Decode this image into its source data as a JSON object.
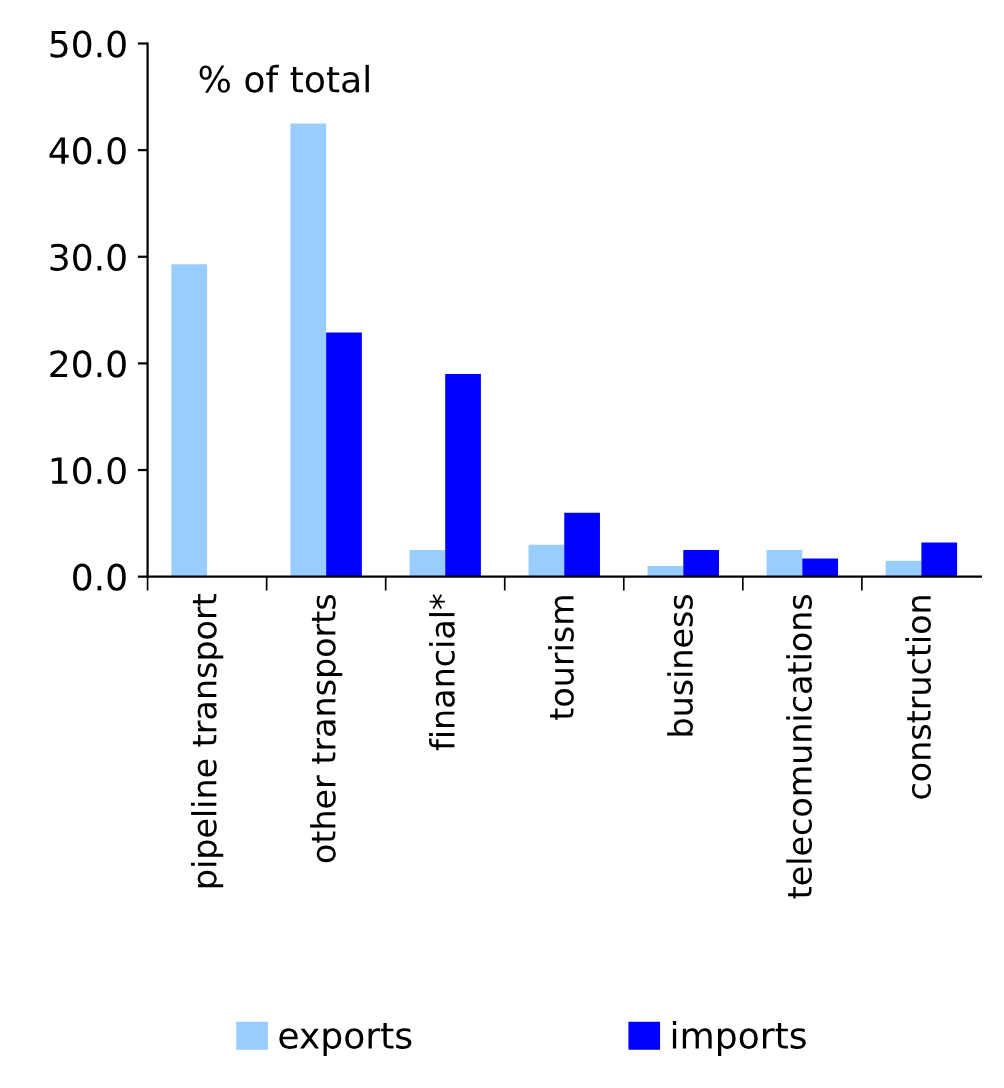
{
  "chart_data": {
    "type": "bar",
    "annotations": [
      "% of total"
    ],
    "categories": [
      "pipeline transport",
      "other transports",
      "financial*",
      "tourism",
      "business",
      "telecomunications",
      "construction"
    ],
    "series": [
      {
        "name": "exports",
        "color": "#99ccff",
        "values": [
          29.3,
          42.5,
          2.5,
          3.0,
          1.0,
          2.5,
          1.5
        ]
      },
      {
        "name": "imports",
        "color": "#0000ff",
        "values": [
          null,
          22.9,
          19.0,
          6.0,
          2.5,
          1.7,
          3.2
        ]
      }
    ],
    "ylim": [
      0,
      50
    ],
    "yticks": [
      {
        "value": 0,
        "label": "0.0"
      },
      {
        "value": 10,
        "label": "10.0"
      },
      {
        "value": 20,
        "label": "20.0"
      },
      {
        "value": 30,
        "label": "30.0"
      },
      {
        "value": 40,
        "label": "40.0"
      },
      {
        "value": 50,
        "label": "50.0"
      }
    ],
    "grid": false,
    "legend": "bottom"
  }
}
